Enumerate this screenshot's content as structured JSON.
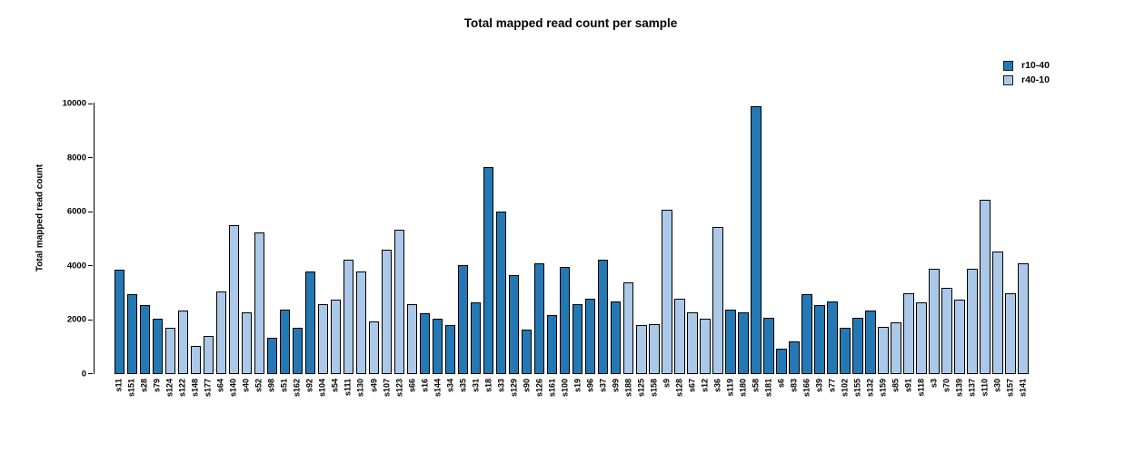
{
  "chart_data": {
    "type": "bar",
    "title": "Total mapped read count per sample",
    "ylabel": "Total mapped read count",
    "xlabel": "",
    "ylim": [
      0,
      10000
    ],
    "yticks": [
      0,
      2000,
      4000,
      6000,
      8000,
      10000
    ],
    "grid": false,
    "legend_position": "top-right",
    "legend": [
      {
        "name": "r10-40",
        "color": "#2478b4"
      },
      {
        "name": "r40-10",
        "color": "#abc8e8"
      }
    ],
    "categories": [
      "s11",
      "s151",
      "s28",
      "s79",
      "s124",
      "s122",
      "s148",
      "s177",
      "s64",
      "s140",
      "s40",
      "s52",
      "s98",
      "s51",
      "s162",
      "s92",
      "s104",
      "s54",
      "s111",
      "s130",
      "s49",
      "s107",
      "s123",
      "s66",
      "s16",
      "s144",
      "s34",
      "s35",
      "s31",
      "s18",
      "s33",
      "s129",
      "s90",
      "s126",
      "s161",
      "s100",
      "s19",
      "s96",
      "s37",
      "s99",
      "s188",
      "s125",
      "s158",
      "s9",
      "s128",
      "s67",
      "s12",
      "s36",
      "s119",
      "s180",
      "s58",
      "s181",
      "s6",
      "s83",
      "s166",
      "s39",
      "s77",
      "s102",
      "s155",
      "s132",
      "s159",
      "s85",
      "s91",
      "s118",
      "s3",
      "s70",
      "s139",
      "s137",
      "s110",
      "s30",
      "s157",
      "s141"
    ],
    "values": [
      3850,
      2950,
      2550,
      2050,
      1700,
      2350,
      1050,
      1400,
      3050,
      5500,
      2300,
      5250,
      1350,
      2400,
      1700,
      3800,
      2600,
      2750,
      4250,
      3800,
      1950,
      4600,
      5350,
      2600,
      2250,
      2050,
      1800,
      4050,
      2650,
      7650,
      6000,
      3650,
      1650,
      4100,
      2200,
      3950,
      2600,
      2800,
      4250,
      2700,
      3400,
      1800,
      1850,
      6100,
      2800,
      2300,
      2050,
      5450,
      2400,
      2300,
      9900,
      2100,
      950,
      1200,
      2950,
      2550,
      2700,
      1700,
      2100,
      2350,
      1750,
      1900,
      3000,
      2650,
      3900,
      3200,
      2750,
      3900,
      6450,
      4550,
      3000,
      4100
    ],
    "groups": [
      "r10-40",
      "r10-40",
      "r10-40",
      "r10-40",
      "r40-10",
      "r40-10",
      "r40-10",
      "r40-10",
      "r40-10",
      "r40-10",
      "r40-10",
      "r40-10",
      "r10-40",
      "r10-40",
      "r10-40",
      "r10-40",
      "r40-10",
      "r40-10",
      "r40-10",
      "r40-10",
      "r40-10",
      "r40-10",
      "r40-10",
      "r40-10",
      "r10-40",
      "r10-40",
      "r10-40",
      "r10-40",
      "r10-40",
      "r10-40",
      "r10-40",
      "r10-40",
      "r10-40",
      "r10-40",
      "r10-40",
      "r10-40",
      "r10-40",
      "r10-40",
      "r10-40",
      "r10-40",
      "r40-10",
      "r40-10",
      "r40-10",
      "r40-10",
      "r40-10",
      "r40-10",
      "r40-10",
      "r40-10",
      "r10-40",
      "r10-40",
      "r10-40",
      "r10-40",
      "r10-40",
      "r10-40",
      "r10-40",
      "r10-40",
      "r10-40",
      "r10-40",
      "r10-40",
      "r10-40",
      "r40-10",
      "r40-10",
      "r40-10",
      "r40-10",
      "r40-10",
      "r40-10",
      "r40-10",
      "r40-10",
      "r40-10",
      "r40-10",
      "r40-10",
      "r40-10"
    ]
  }
}
